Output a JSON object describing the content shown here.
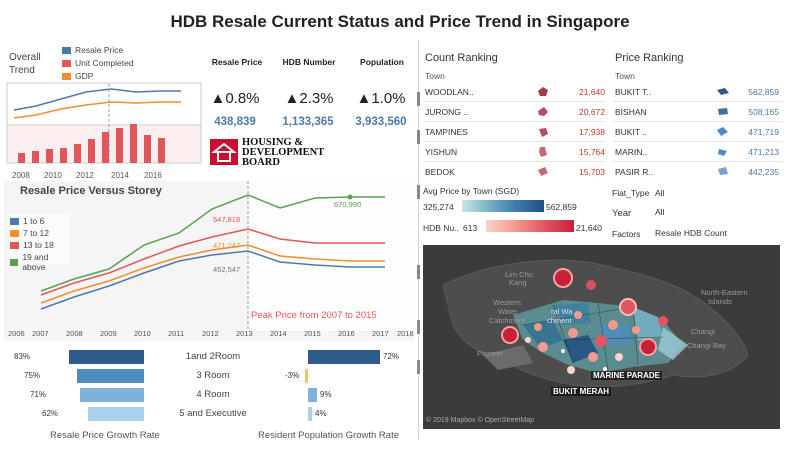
{
  "title": "HDB Resale Current Status and Price Trend in Singapore",
  "overall_trend": {
    "label_line1": "Overall",
    "label_line2": "Trend",
    "legend": [
      {
        "name": "Resale Price",
        "color": "#4e79a7"
      },
      {
        "name": "Unit Completed",
        "color": "#e15759"
      },
      {
        "name": "GDP",
        "color": "#f28e2b"
      }
    ],
    "x_ticks": [
      "2008",
      "2010",
      "2012",
      "2014",
      "2016"
    ]
  },
  "kpis": [
    {
      "header": "Resale Price",
      "change": "▲0.8%",
      "value": "438,839"
    },
    {
      "header": "HDB Number",
      "change": "▲2.3%",
      "value": "1,133,365"
    },
    {
      "header": "Population",
      "change": "▲1.0%",
      "value": "3,933,560"
    }
  ],
  "logo": {
    "line1": "HOUSING &",
    "line2": "DEVELOPMENT",
    "line3": "BOARD"
  },
  "storey_chart": {
    "title": "Resale Price Versus Storey",
    "legend": [
      {
        "name": "1 to 6",
        "color": "#4e79a7"
      },
      {
        "name": "7 to 12",
        "color": "#f28e2b"
      },
      {
        "name": "13 to 18",
        "color": "#e15759"
      },
      {
        "name": "19 and above",
        "color": "#59a14f"
      }
    ],
    "annotations": {
      "green_peak": "670,990",
      "red_peak": "547,818",
      "orange_peak": "471,247",
      "blue_peak": "452,547"
    },
    "peak_note": "Peak Price from 2007 to 2015",
    "x_ticks": [
      "2006",
      "2007",
      "2008",
      "2009",
      "2010",
      "2011",
      "2012",
      "2013",
      "2014",
      "2015",
      "2016",
      "2017",
      "2018"
    ]
  },
  "room_types": [
    {
      "name": "1and 2Room",
      "left_pct": "83%",
      "right_pct": "72%",
      "left_frac": 0.83,
      "right_frac": 0.72,
      "color": "#2e5c8a"
    },
    {
      "name": "3 Room",
      "left_pct": "75%",
      "right_pct": "-3%",
      "left_frac": 0.75,
      "right_frac": -0.03,
      "color": "#4e8cbf"
    },
    {
      "name": "4 Room",
      "left_pct": "71%",
      "right_pct": "9%",
      "left_frac": 0.71,
      "right_frac": 0.09,
      "color": "#7fb2d8"
    },
    {
      "name": "5 and Executive",
      "left_pct": "62%",
      "right_pct": "4%",
      "left_frac": 0.62,
      "right_frac": 0.04,
      "color": "#a9d0ea"
    }
  ],
  "bottom_labels": {
    "left": "Resale Price Growth Rate",
    "right": "Resident Population Growth Rate"
  },
  "count_ranking": {
    "title": "Count Ranking",
    "col": "Town",
    "rows": [
      {
        "town": "WOODLAN..",
        "value": "21,640"
      },
      {
        "town": "JURONG ..",
        "value": "20,672"
      },
      {
        "town": "TAMPINES",
        "value": "17,938"
      },
      {
        "town": "YISHUN",
        "value": "15,764"
      },
      {
        "town": "BEDOK",
        "value": "15,703"
      }
    ]
  },
  "price_ranking": {
    "title": "Price Ranking",
    "col": "Town",
    "rows": [
      {
        "town": "BUKIT T..",
        "value": "562,859"
      },
      {
        "town": "BISHAN",
        "value": "508,165"
      },
      {
        "town": "BUKIT ..",
        "value": "471,719"
      },
      {
        "town": "MARIN..",
        "value": "471,213"
      },
      {
        "town": "PASIR R..",
        "value": "442,235"
      }
    ]
  },
  "legends": {
    "avg_price_title": "Avg Price by Town (SGD)",
    "avg_price_min": "325,274",
    "avg_price_max": "562,859",
    "hdb_num_label": "HDB Nu..",
    "hdb_num_min": "613",
    "hdb_num_max": "21,640"
  },
  "filters": {
    "flat_type_label": "Flat_Type",
    "flat_type_value": "All",
    "year_label": "Year",
    "year_value": "All",
    "factors_label": "Factors",
    "factors_value": "Resale HDB Count"
  },
  "map": {
    "labels": [
      "Western",
      "Water",
      "Catchment",
      "Pioneer",
      "North-Eastern",
      "Islands",
      "Changi",
      "Changi Bay",
      "ral Wa",
      "chment",
      "Lim Chu",
      "Kang"
    ],
    "town_labels": [
      "MARINE PARADE",
      "BUKIT MERAH"
    ],
    "attribution": "© 2019 Mapbox © OpenStreetMap"
  }
}
